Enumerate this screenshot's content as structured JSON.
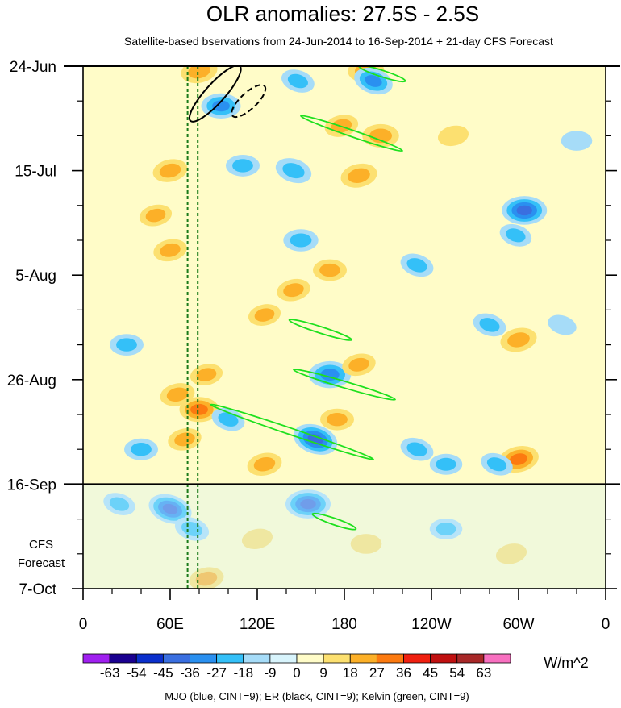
{
  "chart_data": {
    "type": "heatmap",
    "title": "OLR anomalies: 27.5S - 2.5S",
    "subtitle": "Satellite-based bservations from 24-Jun-2014 to 16-Sep-2014 + 21-day CFS Forecast",
    "x_tick_labels": [
      "0",
      "60E",
      "120E",
      "180",
      "120W",
      "60W",
      "0"
    ],
    "x_ticks_lon": [
      0,
      60,
      120,
      180,
      240,
      300,
      360
    ],
    "xlim_lon": [
      0,
      360
    ],
    "y_tick_labels": [
      "24-Jun",
      "15-Jul",
      "5-Aug",
      "26-Aug",
      "16-Sep",
      "7-Oct"
    ],
    "y_ticks_day": [
      0,
      21,
      42,
      63,
      84,
      105
    ],
    "ylim_day": [
      0,
      105
    ],
    "observation_end_day": 84,
    "forecast_label_line1": "CFS",
    "forecast_label_line2": "Forecast",
    "colorbar": {
      "units": "W/m^2",
      "labels": [
        "-63",
        "-54",
        "-45",
        "-36",
        "-27",
        "-18",
        "-9",
        "0",
        "9",
        "18",
        "27",
        "36",
        "45",
        "54",
        "63"
      ],
      "levels": [
        -63,
        -54,
        -45,
        -36,
        -27,
        -18,
        -9,
        0,
        9,
        18,
        27,
        36,
        45,
        54,
        63
      ],
      "colors": [
        "#a020f0",
        "#1a0090",
        "#0a2fcc",
        "#3a6fe0",
        "#2a90f0",
        "#34c0f8",
        "#a6dcf8",
        "#d8f4fc",
        "#fffcc8",
        "#fce070",
        "#fcb028",
        "#fc7a10",
        "#f02010",
        "#c01010",
        "#a82828",
        "#f870c0"
      ]
    },
    "footnote": "MJO (blue, CINT=9); ER (black, CINT=9); Kelvin (green, CINT=9)",
    "anomaly_features": [
      {
        "lon": 95,
        "day": 8,
        "value": -30
      },
      {
        "lon": 80,
        "day": 1,
        "value": 25
      },
      {
        "lon": 148,
        "day": 3,
        "value": -20
      },
      {
        "lon": 195,
        "day": 1,
        "value": 25
      },
      {
        "lon": 200,
        "day": 3,
        "value": -30
      },
      {
        "lon": 178,
        "day": 12,
        "value": 20
      },
      {
        "lon": 205,
        "day": 14,
        "value": 25
      },
      {
        "lon": 190,
        "day": 22,
        "value": 25
      },
      {
        "lon": 145,
        "day": 21,
        "value": -25
      },
      {
        "lon": 110,
        "day": 20,
        "value": -20
      },
      {
        "lon": 60,
        "day": 21,
        "value": 22
      },
      {
        "lon": 50,
        "day": 30,
        "value": 18
      },
      {
        "lon": 304,
        "day": 29,
        "value": -40
      },
      {
        "lon": 298,
        "day": 34,
        "value": -18
      },
      {
        "lon": 60,
        "day": 37,
        "value": 20
      },
      {
        "lon": 170,
        "day": 41,
        "value": 20
      },
      {
        "lon": 145,
        "day": 45,
        "value": 20
      },
      {
        "lon": 230,
        "day": 40,
        "value": -20
      },
      {
        "lon": 150,
        "day": 35,
        "value": -22
      },
      {
        "lon": 300,
        "day": 55,
        "value": 25
      },
      {
        "lon": 280,
        "day": 52,
        "value": -20
      },
      {
        "lon": 30,
        "day": 56,
        "value": -20
      },
      {
        "lon": 125,
        "day": 50,
        "value": 18
      },
      {
        "lon": 85,
        "day": 62,
        "value": 18
      },
      {
        "lon": 170,
        "day": 62,
        "value": -35
      },
      {
        "lon": 190,
        "day": 60,
        "value": 20
      },
      {
        "lon": 65,
        "day": 66,
        "value": 22
      },
      {
        "lon": 80,
        "day": 69,
        "value": 30
      },
      {
        "lon": 100,
        "day": 71,
        "value": -20
      },
      {
        "lon": 160,
        "day": 75,
        "value": -40
      },
      {
        "lon": 175,
        "day": 71,
        "value": 20
      },
      {
        "lon": 125,
        "day": 80,
        "value": 22
      },
      {
        "lon": 230,
        "day": 77,
        "value": -20
      },
      {
        "lon": 250,
        "day": 80,
        "value": -18
      },
      {
        "lon": 300,
        "day": 79,
        "value": 32
      },
      {
        "lon": 285,
        "day": 80,
        "value": -18
      },
      {
        "lon": 40,
        "day": 77,
        "value": -20
      },
      {
        "lon": 70,
        "day": 75,
        "value": 20
      },
      {
        "lon": 60,
        "day": 89,
        "value": -38
      },
      {
        "lon": 155,
        "day": 88,
        "value": -40
      },
      {
        "lon": 25,
        "day": 88,
        "value": -18
      },
      {
        "lon": 75,
        "day": 93,
        "value": -22
      },
      {
        "lon": 250,
        "day": 93,
        "value": -18
      },
      {
        "lon": 85,
        "day": 103,
        "value": 22
      },
      {
        "lon": 120,
        "day": 95,
        "value": 15
      },
      {
        "lon": 195,
        "day": 96,
        "value": 15
      },
      {
        "lon": 295,
        "day": 98,
        "value": 15
      },
      {
        "lon": 255,
        "day": 14,
        "value": 15
      },
      {
        "lon": 340,
        "day": 15,
        "value": -15
      },
      {
        "lon": 330,
        "day": 52,
        "value": -12
      }
    ],
    "contours": {
      "mjo_lines_lon": [
        72,
        79
      ],
      "er": [
        {
          "lon_start": 74,
          "day_start": 11,
          "lon_end": 108,
          "day_end": 0,
          "style": "solid"
        },
        {
          "lon_start": 103,
          "day_start": 10,
          "lon_end": 125,
          "day_end": 4,
          "style": "dashed"
        }
      ],
      "kelvin": [
        {
          "lon_start": 150,
          "day_start": 10,
          "lon_end": 220,
          "day_end": 17
        },
        {
          "lon_start": 190,
          "day_start": 0,
          "lon_end": 222,
          "day_end": 3
        },
        {
          "lon_start": 142,
          "day_start": 51,
          "lon_end": 185,
          "day_end": 55
        },
        {
          "lon_start": 145,
          "day_start": 61,
          "lon_end": 215,
          "day_end": 67
        },
        {
          "lon_start": 88,
          "day_start": 68,
          "lon_end": 200,
          "day_end": 79
        },
        {
          "lon_start": 158,
          "day_start": 90,
          "lon_end": 188,
          "day_end": 93
        }
      ]
    }
  }
}
